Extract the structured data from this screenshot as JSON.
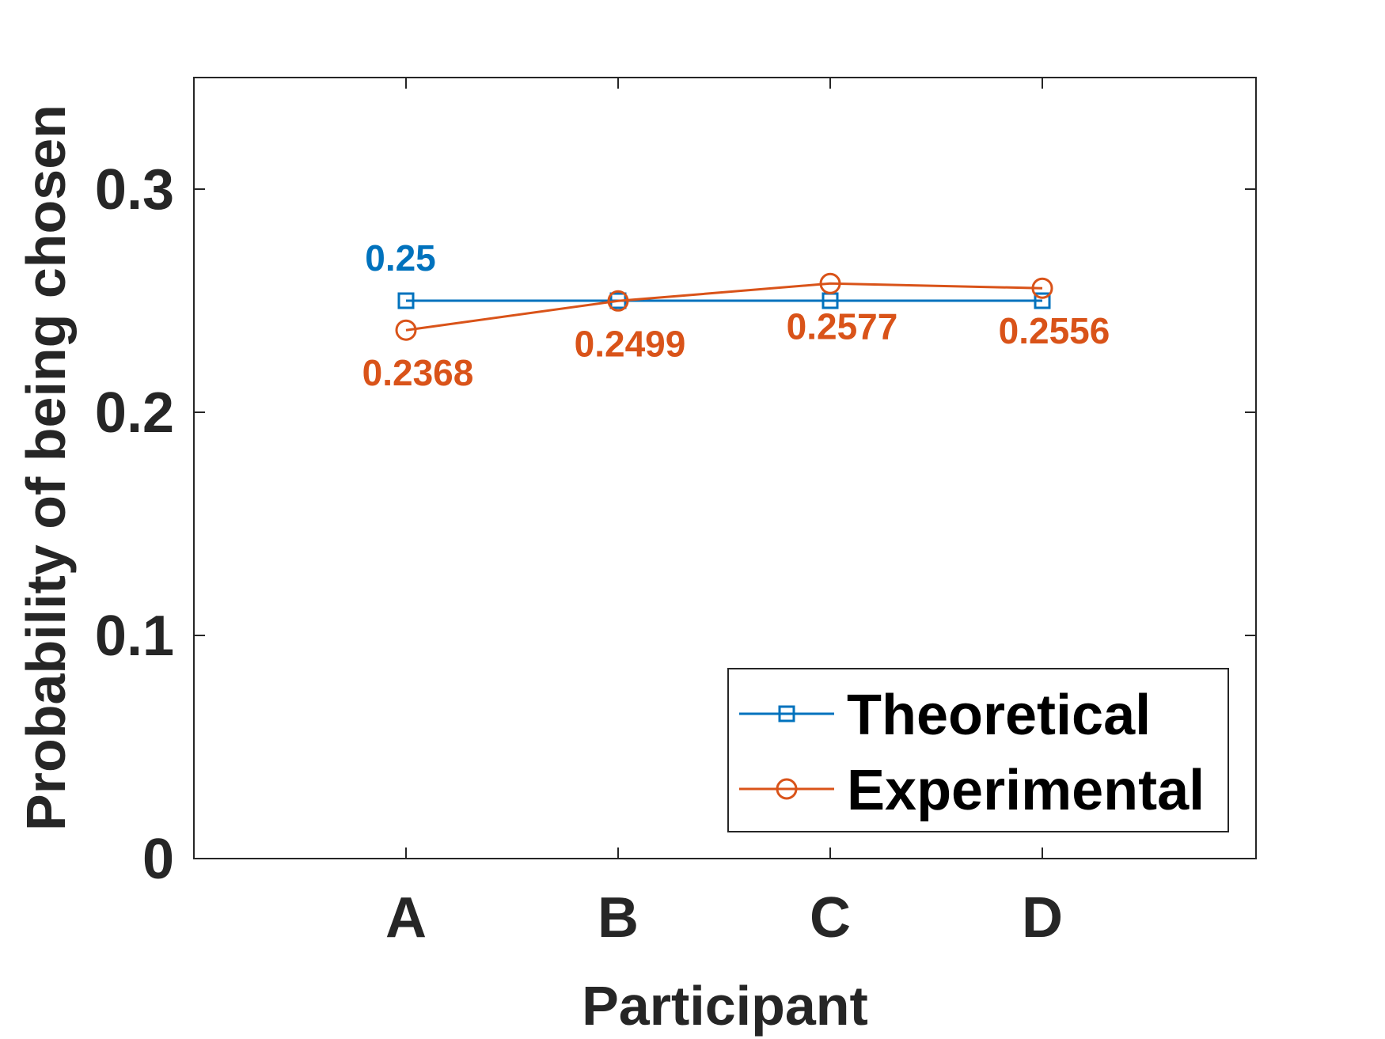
{
  "chart_data": {
    "type": "line",
    "title": "",
    "xlabel": "Participant",
    "ylabel": "Probability of being chosen",
    "categories": [
      "A",
      "B",
      "C",
      "D"
    ],
    "ylim": [
      0,
      0.35
    ],
    "yticks": [
      0,
      0.1,
      0.2,
      0.3
    ],
    "ytick_labels": [
      "0",
      "0.1",
      "0.2",
      "0.3"
    ],
    "grid": false,
    "legend_position": "bottom-right",
    "series": [
      {
        "name": "Theoretical",
        "marker": "square",
        "color": "#0072BD",
        "values": [
          0.25,
          0.25,
          0.25,
          0.25
        ],
        "data_labels": [
          "0.25",
          null,
          null,
          null
        ],
        "label_side": "above"
      },
      {
        "name": "Experimental",
        "marker": "circle",
        "color": "#D95319",
        "values": [
          0.2368,
          0.2499,
          0.2577,
          0.2556
        ],
        "data_labels": [
          "0.2368",
          "0.2499",
          "0.2577",
          "0.2556"
        ],
        "label_side": "below"
      }
    ]
  }
}
